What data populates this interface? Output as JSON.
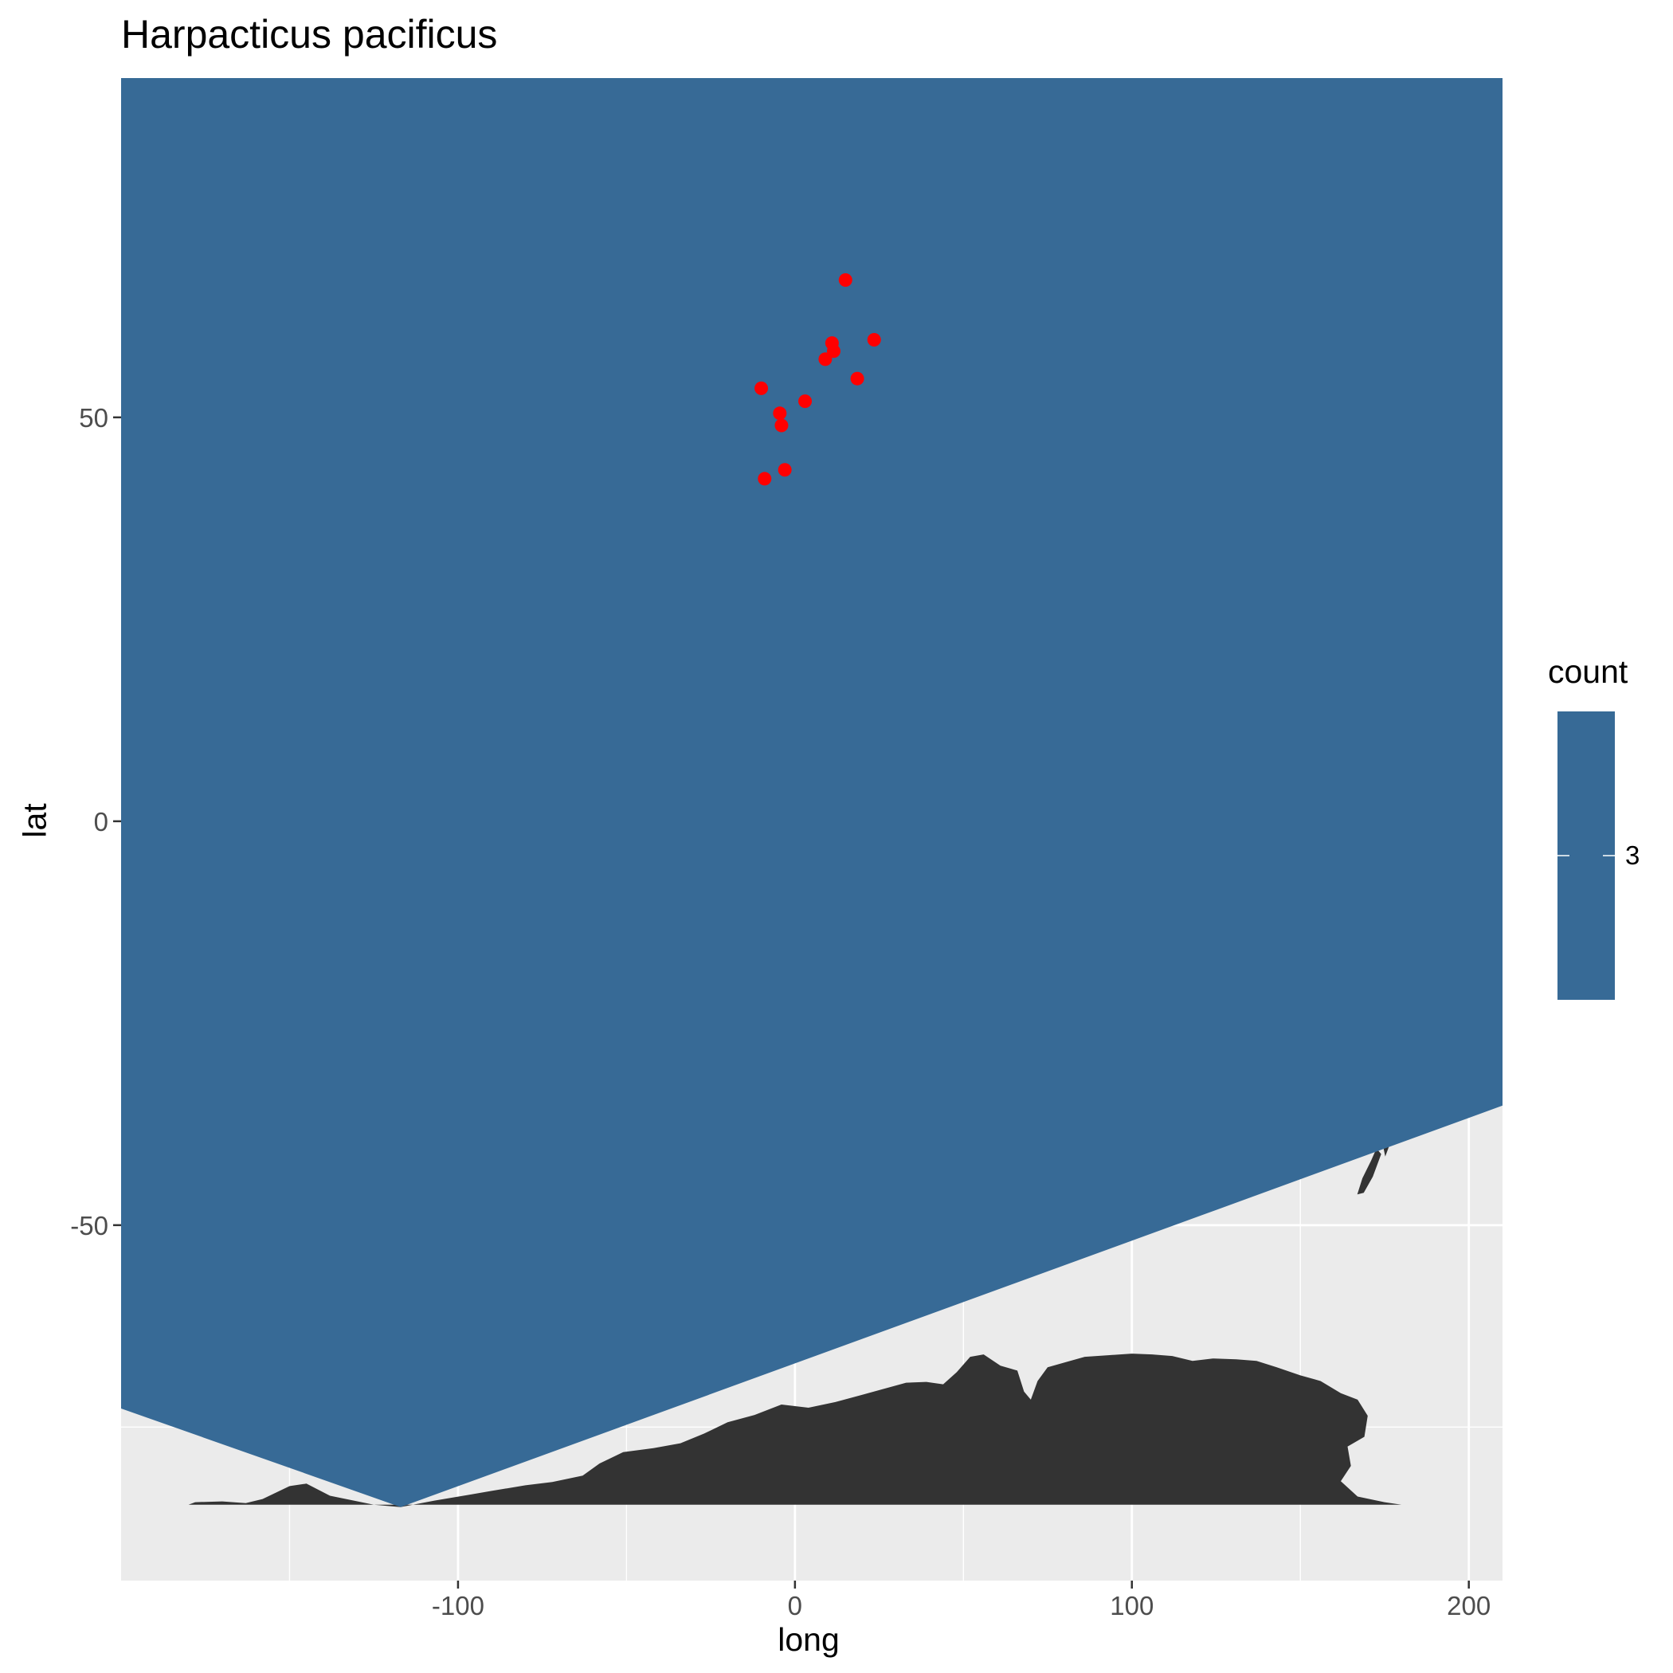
{
  "title": "Harpacticus pacificus",
  "chart_data": {
    "type": "scatter",
    "title": "Harpacticus pacificus",
    "xlabel": "long",
    "ylabel": "lat",
    "xlim": [
      -200,
      210
    ],
    "ylim": [
      -94,
      92
    ],
    "x_ticks": [
      -100,
      0,
      100,
      200
    ],
    "x_tick_labels": [
      "-100",
      "0",
      "100",
      "200"
    ],
    "y_ticks": [
      -50,
      0,
      50
    ],
    "y_tick_labels": [
      "-50",
      "0",
      "50"
    ],
    "grid": true,
    "panel_background": "#EBEBEB",
    "grid_color": "#FFFFFF",
    "land_color": "#333333",
    "point_color": "#FF0000",
    "fill_color": "#376A96",
    "fill_region": {
      "description_of_layer": "hexbin-style filled polygon (count)",
      "vertices": [
        [
          -200,
          92
        ],
        [
          210,
          92
        ],
        [
          210,
          -35.2
        ],
        [
          -117,
          -84.9
        ],
        [
          -200,
          -72.7
        ]
      ]
    },
    "series": [
      {
        "points": [
          {
            "x": 15,
            "y": 67
          },
          {
            "x": 23.5,
            "y": 59.6
          },
          {
            "x": 11,
            "y": 59.2
          },
          {
            "x": 11.5,
            "y": 58.2
          },
          {
            "x": 9,
            "y": 57.2
          },
          {
            "x": 18.5,
            "y": 54.8
          },
          {
            "x": -10,
            "y": 53.6
          },
          {
            "x": 3,
            "y": 52
          },
          {
            "x": -4.5,
            "y": 50.5
          },
          {
            "x": -4,
            "y": 49
          },
          {
            "x": -3,
            "y": 43.5
          },
          {
            "x": -9,
            "y": 42.4
          }
        ]
      }
    ],
    "legend": {
      "title": "count",
      "position": "right",
      "type": "colorbar",
      "labels": [
        "3"
      ],
      "color": "#376A96"
    }
  }
}
